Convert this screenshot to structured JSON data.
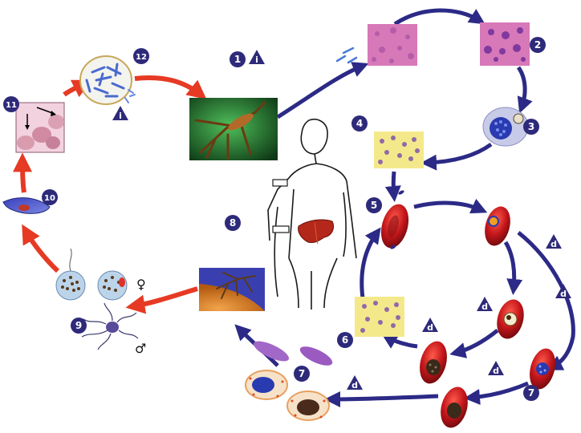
{
  "diagram": {
    "colors": {
      "red_arrow": "#e63a24",
      "navy_arrow": "#2c2a86",
      "badge": "#2e2a7a",
      "badge_text": "#ffffff",
      "tissue_pink": "#d778b8",
      "smear_yellow": "#f4e98a",
      "rbc_red": "#b5161b"
    },
    "step_badges": [
      {
        "id": "step-1",
        "text": "1"
      },
      {
        "id": "step-2",
        "text": "2"
      },
      {
        "id": "step-3",
        "text": "3"
      },
      {
        "id": "step-4",
        "text": "4"
      },
      {
        "id": "step-5",
        "text": "5"
      },
      {
        "id": "step-6",
        "text": "6"
      },
      {
        "id": "step-7a",
        "text": "7"
      },
      {
        "id": "step-7b",
        "text": "7"
      },
      {
        "id": "step-8",
        "text": "8"
      },
      {
        "id": "step-9",
        "text": "9"
      },
      {
        "id": "step-10",
        "text": "10"
      },
      {
        "id": "step-11",
        "text": "11"
      },
      {
        "id": "step-12",
        "text": "12"
      }
    ],
    "stage_markers": {
      "infective_letter": "i",
      "diagnostic_letter": "d"
    },
    "sex_symbols": {
      "female": "♀",
      "male": "♂"
    },
    "icons": [
      "mosquito-feeding-photo-icon",
      "mosquito-biting-skin-photo-icon",
      "human-outline-icon",
      "liver-icon",
      "oocyst-icon",
      "midgut-wall-icon",
      "ookinete-icon",
      "gamete-fertilization-icon",
      "liver-cell-icon",
      "liver-schizont-icon",
      "blood-smear-icon",
      "red-blood-cell-icon",
      "ring-stage-icon",
      "trophozoite-icon",
      "schizont-icon",
      "gametocyte-icon"
    ]
  }
}
